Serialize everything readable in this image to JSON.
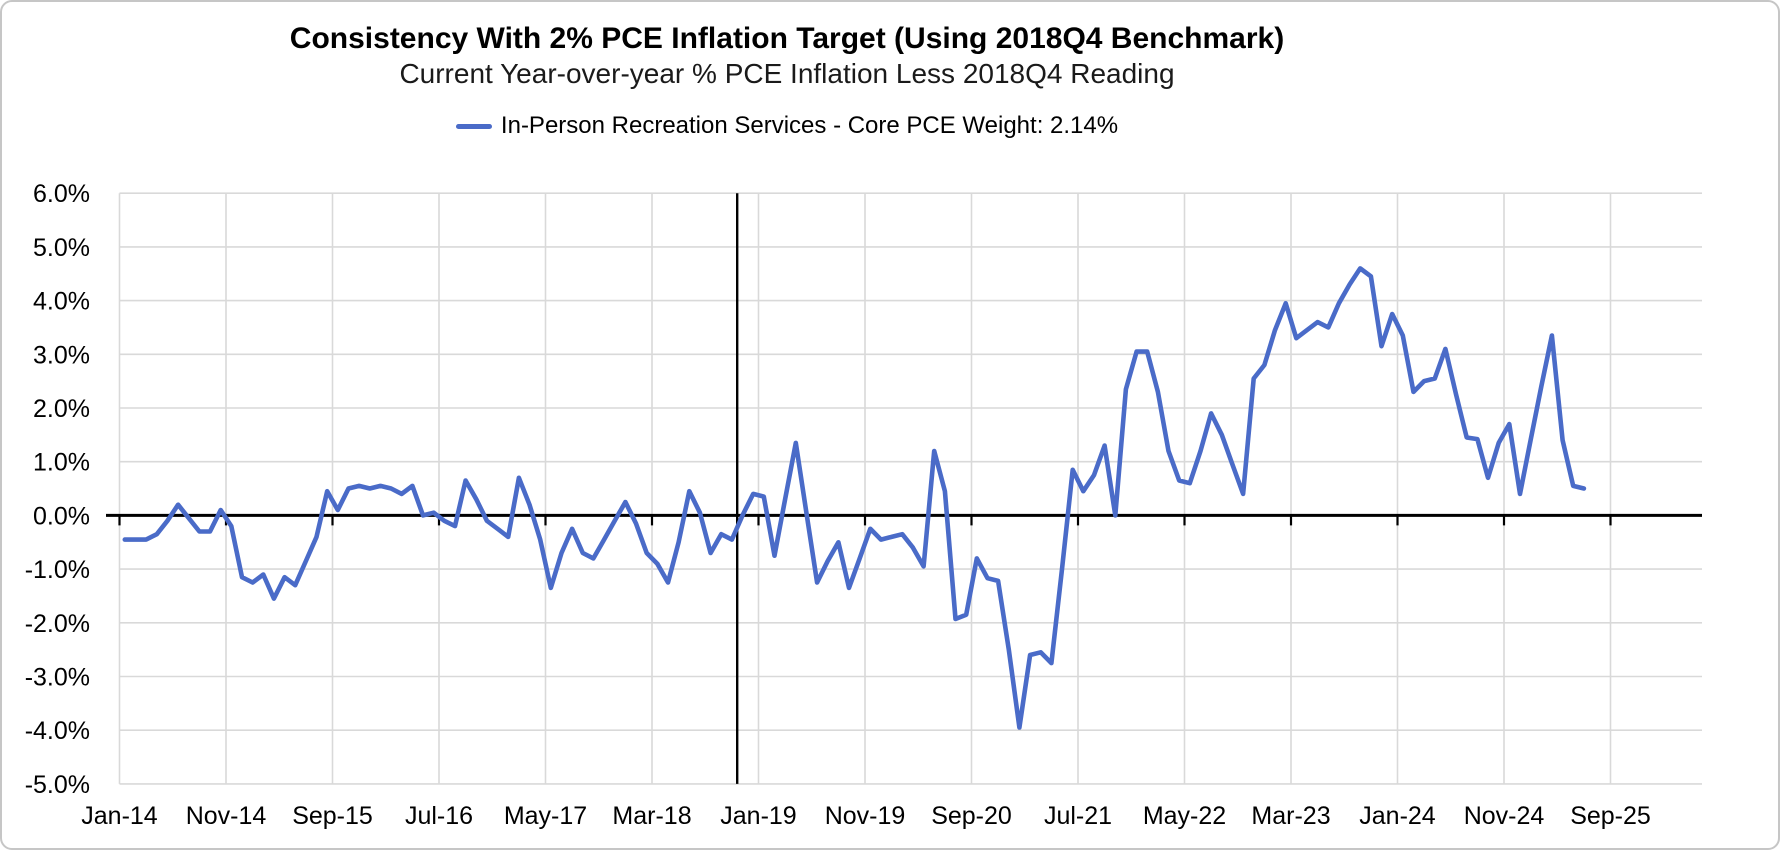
{
  "window": {
    "background": "#ffffff",
    "border_color": "#c6c6c6"
  },
  "header": {
    "title": "Consistency With 2% PCE Inflation Target (Using 2018Q4 Benchmark)",
    "subtitle": "Current Year-over-year % PCE Inflation Less 2018Q4 Reading"
  },
  "legend": {
    "label": "In-Person Recreation Services - Core PCE Weight: 2.14%",
    "color": "#4a6bc8"
  },
  "chart_data": {
    "type": "line",
    "title": "Consistency With 2% PCE Inflation Target (Using 2018Q4 Benchmark)",
    "subtitle": "Current Year-over-year % PCE Inflation Less 2018Q4 Reading",
    "series_name": "In-Person Recreation Services - Core PCE Weight: 2.14%",
    "unit": "percent",
    "start_month": "Jan-14",
    "end_month": "Jun-25",
    "values": [
      -0.45,
      -0.45,
      -0.45,
      -0.35,
      -0.1,
      0.2,
      -0.05,
      -0.3,
      -0.3,
      0.1,
      -0.2,
      -1.15,
      -1.25,
      -1.1,
      -1.55,
      -1.15,
      -1.3,
      -0.85,
      -0.4,
      0.45,
      0.1,
      0.5,
      0.55,
      0.5,
      0.55,
      0.5,
      0.4,
      0.55,
      0.0,
      0.05,
      -0.1,
      -0.2,
      0.65,
      0.3,
      -0.1,
      -0.25,
      -0.4,
      0.7,
      0.2,
      -0.45,
      -1.35,
      -0.7,
      -0.25,
      -0.7,
      -0.8,
      -0.45,
      -0.1,
      0.25,
      -0.15,
      -0.7,
      -0.9,
      -1.25,
      -0.5,
      0.45,
      0.05,
      -0.7,
      -0.35,
      -0.45,
      0.0,
      0.4,
      0.35,
      -0.75,
      0.3,
      1.35,
      0.05,
      -1.25,
      -0.85,
      -0.5,
      -1.35,
      -0.8,
      -0.25,
      -0.45,
      -0.4,
      -0.35,
      -0.6,
      -0.95,
      1.2,
      0.45,
      -1.93,
      -1.85,
      -0.8,
      -1.17,
      -1.22,
      -2.5,
      -3.95,
      -2.6,
      -2.55,
      -2.75,
      -1.0,
      0.85,
      0.45,
      0.75,
      1.3,
      0.0,
      2.35,
      3.05,
      3.05,
      2.3,
      1.2,
      0.65,
      0.6,
      1.2,
      1.9,
      1.5,
      0.95,
      0.4,
      2.55,
      2.8,
      3.45,
      3.95,
      3.3,
      3.45,
      3.6,
      3.5,
      3.95,
      4.3,
      4.6,
      4.45,
      3.15,
      3.75,
      3.35,
      2.3,
      2.5,
      2.55,
      3.1,
      2.25,
      1.45,
      1.42,
      0.7,
      1.35,
      1.7,
      0.4,
      1.4,
      2.4,
      3.35,
      1.4,
      0.55,
      0.5
    ],
    "x_tick_labels": [
      "Jan-14",
      "Nov-14",
      "Sep-15",
      "Jul-16",
      "May-17",
      "Mar-18",
      "Jan-19",
      "Nov-19",
      "Sep-20",
      "Jul-21",
      "May-22",
      "Mar-23",
      "Jan-24",
      "Nov-24",
      "Sep-25"
    ],
    "x_tick_interval_months": 10,
    "y_tick_labels": [
      "6.0%",
      "5.0%",
      "4.0%",
      "3.0%",
      "2.0%",
      "1.0%",
      "0.0%",
      "-1.0%",
      "-2.0%",
      "-3.0%",
      "-4.0%",
      "-5.0%"
    ],
    "ylim": [
      -5,
      6
    ],
    "y_tick_step": 1,
    "benchmark_month": "Nov-18",
    "benchmark_index": 58,
    "grid": true,
    "grid_color": "#d9d9d9",
    "axis_color": "#000000",
    "line_color": "#4a6bc8",
    "label_color": "#000000",
    "legend_position": "top"
  }
}
